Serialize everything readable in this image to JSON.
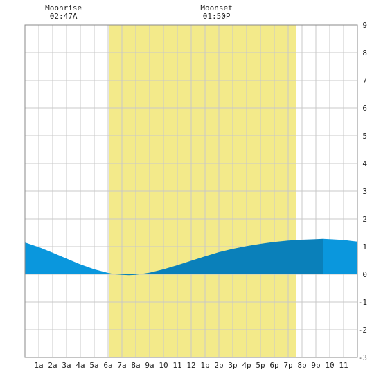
{
  "chart_data": {
    "type": "area",
    "title": "",
    "xlabel": "",
    "ylabel": "",
    "xlim": [
      0,
      24
    ],
    "ylim": [
      -3,
      9
    ],
    "grid": true,
    "x_ticks": [
      {
        "x": 1,
        "label": "1a"
      },
      {
        "x": 2,
        "label": "2a"
      },
      {
        "x": 3,
        "label": "3a"
      },
      {
        "x": 4,
        "label": "4a"
      },
      {
        "x": 5,
        "label": "5a"
      },
      {
        "x": 6,
        "label": "6a"
      },
      {
        "x": 7,
        "label": "7a"
      },
      {
        "x": 8,
        "label": "8a"
      },
      {
        "x": 9,
        "label": "9a"
      },
      {
        "x": 10,
        "label": "10"
      },
      {
        "x": 11,
        "label": "11"
      },
      {
        "x": 12,
        "label": "12"
      },
      {
        "x": 13,
        "label": "1p"
      },
      {
        "x": 14,
        "label": "2p"
      },
      {
        "x": 15,
        "label": "3p"
      },
      {
        "x": 16,
        "label": "4p"
      },
      {
        "x": 17,
        "label": "5p"
      },
      {
        "x": 18,
        "label": "6p"
      },
      {
        "x": 19,
        "label": "7p"
      },
      {
        "x": 20,
        "label": "8p"
      },
      {
        "x": 21,
        "label": "9p"
      },
      {
        "x": 22,
        "label": "10"
      },
      {
        "x": 23,
        "label": "11"
      }
    ],
    "y_ticks": [
      {
        "y": -3,
        "label": "-3"
      },
      {
        "y": -2,
        "label": "-2"
      },
      {
        "y": -1,
        "label": "-1"
      },
      {
        "y": 0,
        "label": "0"
      },
      {
        "y": 1,
        "label": "1"
      },
      {
        "y": 2,
        "label": "2"
      },
      {
        "y": 3,
        "label": "3"
      },
      {
        "y": 4,
        "label": "4"
      },
      {
        "y": 5,
        "label": "5"
      },
      {
        "y": 6,
        "label": "6"
      },
      {
        "y": 7,
        "label": "7"
      },
      {
        "y": 8,
        "label": "8"
      },
      {
        "y": 9,
        "label": "9"
      }
    ],
    "daylight": {
      "start": 6.1,
      "end": 19.6,
      "color": "#f3ea8a"
    },
    "moon_events": [
      {
        "x": 2.78,
        "name": "Moonrise",
        "time": "02:47A"
      },
      {
        "x": 13.83,
        "name": "Moonset",
        "time": "01:50P"
      }
    ],
    "tide_series": {
      "x": [
        0,
        1,
        2,
        3,
        4,
        5,
        6,
        6.5,
        7,
        7.5,
        8,
        9,
        10,
        11,
        12,
        13,
        14,
        15,
        16,
        17,
        18,
        19,
        20,
        21,
        21.5,
        22,
        23,
        24
      ],
      "y": [
        1.15,
        0.98,
        0.78,
        0.57,
        0.36,
        0.18,
        0.05,
        0.0,
        -0.02,
        -0.03,
        -0.02,
        0.06,
        0.18,
        0.33,
        0.49,
        0.65,
        0.8,
        0.92,
        1.02,
        1.1,
        1.17,
        1.22,
        1.25,
        1.27,
        1.28,
        1.27,
        1.24,
        1.18
      ]
    },
    "colors": {
      "night_fill": "#0a97dd",
      "day_fill": "#0a80ba",
      "grid": "#c8c8c8",
      "frame": "#888888",
      "background": "#ffffff"
    }
  }
}
